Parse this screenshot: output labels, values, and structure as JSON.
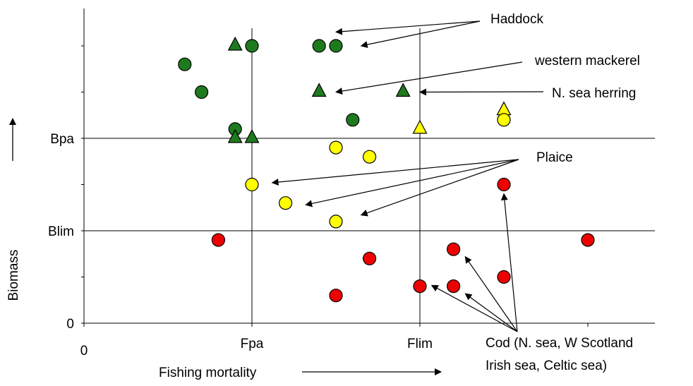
{
  "chart_data": {
    "type": "scatter",
    "title": "",
    "xlabel": "Fishing mortality",
    "ylabel": "Biomass",
    "xlim": [
      0,
      3.4
    ],
    "ylim": [
      0,
      3
    ],
    "x_tick_labels": [
      {
        "value": 0,
        "label": "0"
      },
      {
        "value": 1,
        "label": "Fpa"
      },
      {
        "value": 2,
        "label": "Flim"
      }
    ],
    "y_tick_labels": [
      {
        "value": 0,
        "label": "0"
      },
      {
        "value": 1,
        "label": "Blim"
      },
      {
        "value": 2,
        "label": "Bpa"
      }
    ],
    "reference_lines": [
      {
        "axis": "y",
        "value": 2,
        "label": "Bpa"
      },
      {
        "axis": "y",
        "value": 1,
        "label": "Blim"
      },
      {
        "axis": "x",
        "value": 1,
        "label": "Fpa"
      },
      {
        "axis": "x",
        "value": 2,
        "label": "Flim"
      }
    ],
    "colors": {
      "green": "#1e7a1e",
      "yellow": "#ffff00",
      "red": "#ee0000"
    },
    "points": [
      {
        "x": 0.6,
        "y": 2.8,
        "shape": "circle",
        "color": "green"
      },
      {
        "x": 0.7,
        "y": 2.5,
        "shape": "circle",
        "color": "green"
      },
      {
        "x": 0.9,
        "y": 3.0,
        "shape": "triangle",
        "color": "green"
      },
      {
        "x": 1.0,
        "y": 3.0,
        "shape": "circle",
        "color": "green"
      },
      {
        "x": 1.4,
        "y": 3.0,
        "shape": "circle",
        "color": "green"
      },
      {
        "x": 1.5,
        "y": 3.0,
        "shape": "circle",
        "color": "green"
      },
      {
        "x": 1.4,
        "y": 2.5,
        "shape": "triangle",
        "color": "green"
      },
      {
        "x": 1.9,
        "y": 2.5,
        "shape": "triangle",
        "color": "green"
      },
      {
        "x": 0.9,
        "y": 2.1,
        "shape": "circle",
        "color": "green"
      },
      {
        "x": 0.9,
        "y": 2.0,
        "shape": "triangle",
        "color": "green"
      },
      {
        "x": 1.0,
        "y": 2.0,
        "shape": "triangle",
        "color": "green"
      },
      {
        "x": 1.6,
        "y": 2.2,
        "shape": "circle",
        "color": "green"
      },
      {
        "x": 2.0,
        "y": 2.1,
        "shape": "triangle",
        "color": "yellow"
      },
      {
        "x": 2.5,
        "y": 2.3,
        "shape": "triangle",
        "color": "yellow"
      },
      {
        "x": 2.5,
        "y": 2.2,
        "shape": "circle",
        "color": "yellow"
      },
      {
        "x": 1.5,
        "y": 1.9,
        "shape": "circle",
        "color": "yellow"
      },
      {
        "x": 1.7,
        "y": 1.8,
        "shape": "circle",
        "color": "yellow"
      },
      {
        "x": 1.0,
        "y": 1.5,
        "shape": "circle",
        "color": "yellow"
      },
      {
        "x": 1.2,
        "y": 1.3,
        "shape": "circle",
        "color": "yellow"
      },
      {
        "x": 1.5,
        "y": 1.1,
        "shape": "circle",
        "color": "yellow"
      },
      {
        "x": 2.5,
        "y": 1.5,
        "shape": "circle",
        "color": "red"
      },
      {
        "x": 0.8,
        "y": 0.9,
        "shape": "circle",
        "color": "red"
      },
      {
        "x": 3.0,
        "y": 0.9,
        "shape": "circle",
        "color": "red"
      },
      {
        "x": 1.7,
        "y": 0.7,
        "shape": "circle",
        "color": "red"
      },
      {
        "x": 2.2,
        "y": 0.8,
        "shape": "circle",
        "color": "red"
      },
      {
        "x": 2.5,
        "y": 0.5,
        "shape": "circle",
        "color": "red"
      },
      {
        "x": 2.0,
        "y": 0.4,
        "shape": "circle",
        "color": "red"
      },
      {
        "x": 2.2,
        "y": 0.4,
        "shape": "circle",
        "color": "red"
      },
      {
        "x": 1.5,
        "y": 0.3,
        "shape": "circle",
        "color": "red"
      }
    ],
    "annotations": [
      {
        "text": "Haddock",
        "lines": [
          "Haddock"
        ],
        "arrows": [
          {
            "x": 1.5,
            "y": 3.15
          },
          {
            "x": 1.65,
            "y": 3.0
          }
        ]
      },
      {
        "text": "western mackerel",
        "lines": [
          "western mackerel"
        ],
        "arrows": [
          {
            "x": 1.5,
            "y": 2.5
          }
        ]
      },
      {
        "text": "N. sea herring",
        "lines": [
          "N. sea herring"
        ],
        "arrows": [
          {
            "x": 2.0,
            "y": 2.5
          }
        ]
      },
      {
        "text": "Plaice",
        "lines": [
          "Plaice"
        ],
        "arrows": [
          {
            "x": 1.12,
            "y": 1.52
          },
          {
            "x": 1.32,
            "y": 1.28
          },
          {
            "x": 1.65,
            "y": 1.17
          }
        ]
      },
      {
        "text": "Cod (N. sea, W Scotland Irish sea, Celtic sea)",
        "lines": [
          "Cod (N. sea, W Scotland",
          "Irish sea, Celtic sea)"
        ],
        "arrows": [
          {
            "x": 2.5,
            "y": 1.4
          },
          {
            "x": 2.27,
            "y": 0.72
          },
          {
            "x": 2.07,
            "y": 0.41
          },
          {
            "x": 2.27,
            "y": 0.32
          }
        ]
      }
    ]
  }
}
